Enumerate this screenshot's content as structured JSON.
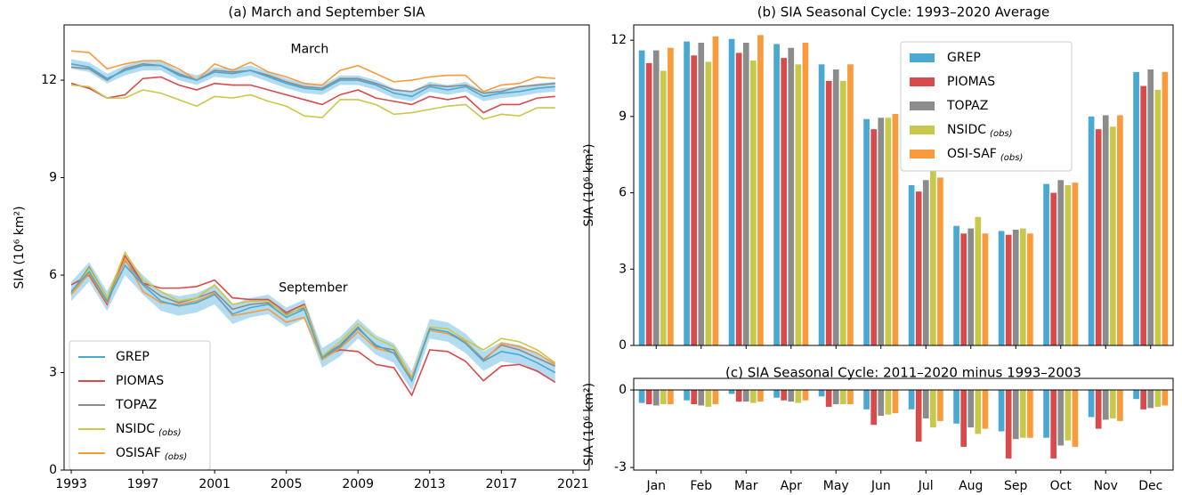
{
  "chart_data": [
    {
      "type": "line",
      "title": "(a) March and September SIA",
      "y_label": "SIA (10⁶ km²)",
      "annotations": [
        "March",
        "September"
      ],
      "x": [
        1993,
        1994,
        1995,
        1996,
        1997,
        1998,
        1999,
        2000,
        2001,
        2002,
        2003,
        2004,
        2005,
        2006,
        2007,
        2008,
        2009,
        2010,
        2011,
        2012,
        2013,
        2014,
        2015,
        2016,
        2017,
        2018,
        2019,
        2020
      ],
      "xlim": [
        1992.6,
        2021.9
      ],
      "xticks": [
        1993,
        1997,
        2001,
        2005,
        2009,
        2013,
        2017,
        2021
      ],
      "ylim": [
        0,
        13.7
      ],
      "yticks": [
        0,
        3,
        6,
        9,
        12
      ],
      "legend": "lower left",
      "band": {
        "color": "#b3dcf0",
        "march_lower": [
          12.35,
          12.25,
          11.9,
          12.15,
          12.3,
          12.3,
          12.0,
          11.85,
          12.1,
          12.05,
          12.15,
          11.95,
          11.75,
          11.6,
          11.55,
          11.85,
          11.85,
          11.7,
          11.45,
          11.35,
          11.65,
          11.55,
          11.65,
          11.35,
          11.45,
          11.5,
          11.6,
          11.65
        ],
        "march_upper": [
          12.65,
          12.55,
          12.2,
          12.45,
          12.6,
          12.6,
          12.3,
          12.15,
          12.4,
          12.35,
          12.45,
          12.25,
          12.05,
          11.9,
          11.85,
          12.15,
          12.15,
          12.0,
          11.75,
          11.65,
          11.95,
          11.85,
          11.95,
          11.65,
          11.75,
          11.8,
          11.9,
          11.95
        ],
        "september_lower": [
          5.2,
          5.8,
          4.9,
          6.0,
          5.4,
          4.9,
          4.75,
          4.85,
          5.1,
          4.5,
          4.7,
          4.8,
          4.4,
          4.65,
          3.15,
          3.5,
          4.05,
          3.55,
          3.3,
          2.45,
          4.05,
          3.95,
          3.6,
          3.05,
          3.35,
          3.25,
          3.0,
          2.7
        ],
        "september_upper": [
          5.8,
          6.4,
          5.5,
          6.6,
          6.0,
          5.5,
          5.35,
          5.45,
          5.7,
          5.1,
          5.3,
          5.4,
          5.0,
          5.25,
          3.75,
          4.1,
          4.65,
          4.15,
          3.9,
          3.05,
          4.65,
          4.55,
          4.2,
          3.65,
          3.95,
          3.85,
          3.6,
          3.3
        ]
      },
      "series": [
        {
          "name": "GREP",
          "color": "#4aa9d3",
          "march": [
            12.5,
            12.4,
            12.05,
            12.3,
            12.45,
            12.45,
            12.15,
            12.0,
            12.25,
            12.2,
            12.3,
            12.1,
            11.9,
            11.75,
            11.7,
            12.0,
            12.0,
            11.85,
            11.6,
            11.5,
            11.8,
            11.7,
            11.8,
            11.5,
            11.6,
            11.65,
            11.75,
            11.8
          ],
          "september": [
            5.5,
            6.1,
            5.2,
            6.3,
            5.7,
            5.2,
            5.05,
            5.15,
            5.4,
            4.8,
            5.0,
            5.1,
            4.7,
            4.95,
            3.45,
            3.8,
            4.35,
            3.85,
            3.6,
            2.75,
            4.35,
            4.25,
            3.9,
            3.35,
            3.65,
            3.55,
            3.3,
            3.0
          ]
        },
        {
          "name": "PIOMAS",
          "color": "#d94a4a",
          "march": [
            11.9,
            11.75,
            11.45,
            11.55,
            12.05,
            12.1,
            11.85,
            11.7,
            11.9,
            11.85,
            11.85,
            11.7,
            11.55,
            11.4,
            11.25,
            11.55,
            11.7,
            11.45,
            11.35,
            11.25,
            11.5,
            11.4,
            11.5,
            11.0,
            11.25,
            11.25,
            11.45,
            11.5
          ],
          "september": [
            5.7,
            6.0,
            5.1,
            6.6,
            5.75,
            5.6,
            5.6,
            5.65,
            5.85,
            5.3,
            5.25,
            5.25,
            4.85,
            5.1,
            3.5,
            3.7,
            3.65,
            3.25,
            3.15,
            2.3,
            3.7,
            3.65,
            3.35,
            2.75,
            3.2,
            3.25,
            3.05,
            2.7
          ]
        },
        {
          "name": "TOPAZ",
          "color": "#8c8c8c",
          "march": [
            12.4,
            12.35,
            12.0,
            12.35,
            12.5,
            12.45,
            12.2,
            12.0,
            12.3,
            12.25,
            12.3,
            12.15,
            11.95,
            11.8,
            11.75,
            12.05,
            12.05,
            11.9,
            11.7,
            11.65,
            11.85,
            11.8,
            11.85,
            11.6,
            11.65,
            11.8,
            11.85,
            11.9
          ],
          "september": [
            5.45,
            6.25,
            5.3,
            6.45,
            5.75,
            5.35,
            5.15,
            5.3,
            5.5,
            4.95,
            5.1,
            5.15,
            4.8,
            5.0,
            3.5,
            3.85,
            4.4,
            3.8,
            3.7,
            2.75,
            4.35,
            4.25,
            3.95,
            3.4,
            3.85,
            3.7,
            3.45,
            3.2
          ]
        },
        {
          "name": "NSIDC",
          "name_subscript": "(obs)",
          "color": "#c8c84a",
          "march": [
            11.85,
            11.8,
            11.45,
            11.45,
            11.7,
            11.6,
            11.4,
            11.2,
            11.5,
            11.45,
            11.55,
            11.35,
            11.2,
            10.9,
            10.85,
            11.4,
            11.4,
            11.25,
            10.95,
            11.0,
            11.1,
            11.2,
            11.25,
            10.8,
            10.95,
            10.9,
            11.15,
            11.15
          ],
          "september": [
            5.4,
            6.2,
            5.3,
            6.7,
            5.85,
            5.5,
            5.2,
            5.3,
            5.7,
            5.1,
            5.2,
            5.2,
            4.75,
            5.05,
            3.5,
            3.95,
            4.5,
            4.05,
            3.8,
            2.85,
            4.4,
            4.35,
            4.0,
            3.7,
            4.05,
            3.95,
            3.7,
            3.3
          ]
        },
        {
          "name": "OSISAF",
          "name_subscript": "(obs)",
          "color": "#f99a3d",
          "march": [
            12.9,
            12.85,
            12.35,
            12.5,
            12.6,
            12.6,
            12.35,
            12.0,
            12.5,
            12.3,
            12.55,
            12.25,
            12.1,
            11.9,
            11.85,
            12.3,
            12.45,
            12.2,
            11.95,
            12.0,
            12.1,
            12.15,
            12.15,
            11.65,
            11.85,
            11.9,
            12.1,
            12.05
          ],
          "september": [
            5.4,
            6.05,
            5.15,
            6.5,
            5.5,
            5.15,
            5.1,
            5.2,
            5.45,
            4.75,
            4.85,
            4.95,
            4.55,
            4.7,
            3.4,
            3.75,
            4.25,
            3.75,
            3.6,
            2.85,
            4.3,
            4.2,
            3.95,
            3.35,
            3.9,
            3.8,
            3.6,
            3.25
          ]
        }
      ]
    },
    {
      "type": "bar",
      "title": "(b) SIA Seasonal Cycle:   1993–2020 Average",
      "y_label": "SIA (10⁶ km²)",
      "ylim": [
        0,
        12.6
      ],
      "yticks": [
        0,
        3,
        6,
        9,
        12
      ],
      "legend": "upper center",
      "series": [
        {
          "name": "GREP",
          "color": "#4aa9d3",
          "values": [
            11.6,
            11.95,
            12.05,
            11.85,
            11.05,
            8.9,
            6.3,
            4.7,
            4.5,
            6.35,
            9.0,
            10.75
          ]
        },
        {
          "name": "PIOMAS",
          "color": "#d94a4a",
          "values": [
            11.1,
            11.4,
            11.5,
            11.3,
            10.4,
            8.5,
            6.05,
            4.4,
            4.35,
            6.0,
            8.5,
            10.2
          ]
        },
        {
          "name": "TOPAZ",
          "color": "#8c8c8c",
          "values": [
            11.6,
            11.9,
            11.9,
            11.7,
            10.85,
            8.95,
            6.5,
            4.6,
            4.55,
            6.5,
            9.05,
            10.85
          ]
        },
        {
          "name": "NSIDC",
          "name_subscript": "(obs)",
          "color": "#c8c84a",
          "values": [
            10.8,
            11.15,
            11.2,
            11.05,
            10.4,
            8.95,
            6.85,
            5.05,
            4.6,
            6.3,
            8.6,
            10.05
          ]
        },
        {
          "name": "OSI-SAF",
          "name_subscript": "(obs)",
          "color": "#f99a3d",
          "values": [
            11.7,
            12.15,
            12.2,
            11.9,
            11.05,
            9.1,
            6.6,
            4.4,
            4.4,
            6.4,
            9.05,
            10.75
          ]
        }
      ]
    },
    {
      "type": "bar",
      "title": "(c) SIA Seasonal Cycle:    2011–2020 minus 1993–2003",
      "y_label": "SIA (10⁶ km²)",
      "categories": [
        "Jan",
        "Feb",
        "Mar",
        "Apr",
        "May",
        "Jun",
        "Jul",
        "Aug",
        "Sep",
        "Oct",
        "Nov",
        "Dec"
      ],
      "ylim": [
        -3.1,
        0.45
      ],
      "yticks": [
        -3,
        0
      ],
      "series": [
        {
          "color": "#4aa9d3",
          "values": [
            -0.5,
            -0.4,
            -0.15,
            -0.3,
            -0.25,
            -0.75,
            -0.75,
            -1.3,
            -1.6,
            -1.85,
            -1.05,
            -0.35
          ]
        },
        {
          "color": "#d94a4a",
          "values": [
            -0.55,
            -0.55,
            -0.45,
            -0.4,
            -0.65,
            -1.35,
            -2.0,
            -2.2,
            -2.65,
            -2.65,
            -1.5,
            -0.75
          ]
        },
        {
          "color": "#8c8c8c",
          "values": [
            -0.6,
            -0.6,
            -0.45,
            -0.45,
            -0.55,
            -1.0,
            -1.1,
            -1.45,
            -1.9,
            -2.15,
            -1.15,
            -0.7
          ]
        },
        {
          "color": "#c8c84a",
          "values": [
            -0.55,
            -0.65,
            -0.5,
            -0.5,
            -0.55,
            -0.95,
            -1.45,
            -1.7,
            -1.85,
            -1.95,
            -1.1,
            -0.65
          ]
        },
        {
          "color": "#f99a3d",
          "values": [
            -0.55,
            -0.55,
            -0.45,
            -0.4,
            -0.55,
            -0.9,
            -1.2,
            -1.5,
            -1.85,
            -2.2,
            -1.2,
            -0.6
          ]
        }
      ]
    }
  ]
}
